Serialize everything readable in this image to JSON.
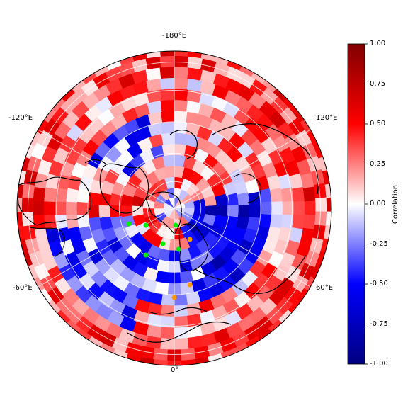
{
  "map": {
    "projection": "north-polar-stereographic",
    "longitude_labels": {
      "top": "-180°E",
      "bottom": "0°",
      "upper_left": "-120°E",
      "upper_right": "120°E",
      "lower_left": "-60°E",
      "lower_right": "60°E"
    },
    "markers": [
      {
        "color": "#00ee00",
        "kind": "station-green"
      },
      {
        "color": "#00ee00",
        "kind": "station-green"
      },
      {
        "color": "#00ee00",
        "kind": "station-green"
      },
      {
        "color": "#00ee00",
        "kind": "station-green"
      },
      {
        "color": "#00ee00",
        "kind": "station-green"
      },
      {
        "color": "#00ee00",
        "kind": "station-green"
      },
      {
        "color": "#ff9900",
        "kind": "station-orange"
      },
      {
        "color": "#ff9900",
        "kind": "station-orange"
      },
      {
        "color": "#ff9900",
        "kind": "station-orange"
      }
    ]
  },
  "colorbar": {
    "label": "Correlation",
    "colormap": "seismic",
    "range": [
      -1.0,
      1.0
    ],
    "ticks": [
      "1.00",
      "0.75",
      "0.50",
      "0.25",
      "0.00",
      "-0.25",
      "-0.50",
      "-0.75",
      "-1.00"
    ]
  },
  "colors": {
    "high": "#800000",
    "mid": "#ffffff",
    "low": "#000080"
  }
}
